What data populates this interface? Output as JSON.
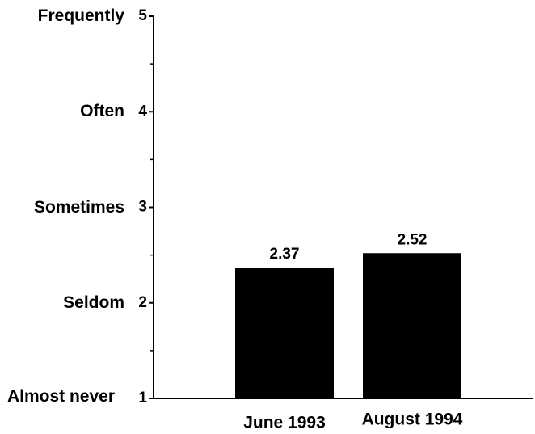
{
  "chart_data": {
    "type": "bar",
    "categories": [
      "June 1993",
      "August 1994"
    ],
    "values": [
      2.37,
      2.52
    ],
    "color": "#000000",
    "ylim": [
      1,
      5
    ],
    "yticks": [
      1,
      2,
      3,
      4,
      5
    ],
    "minor_yticks": [
      1.5,
      2.5,
      3.5,
      4.5
    ],
    "y_scale_labels": [
      "Almost never",
      "Seldom",
      "Sometimes",
      "Often",
      "Frequently"
    ]
  }
}
